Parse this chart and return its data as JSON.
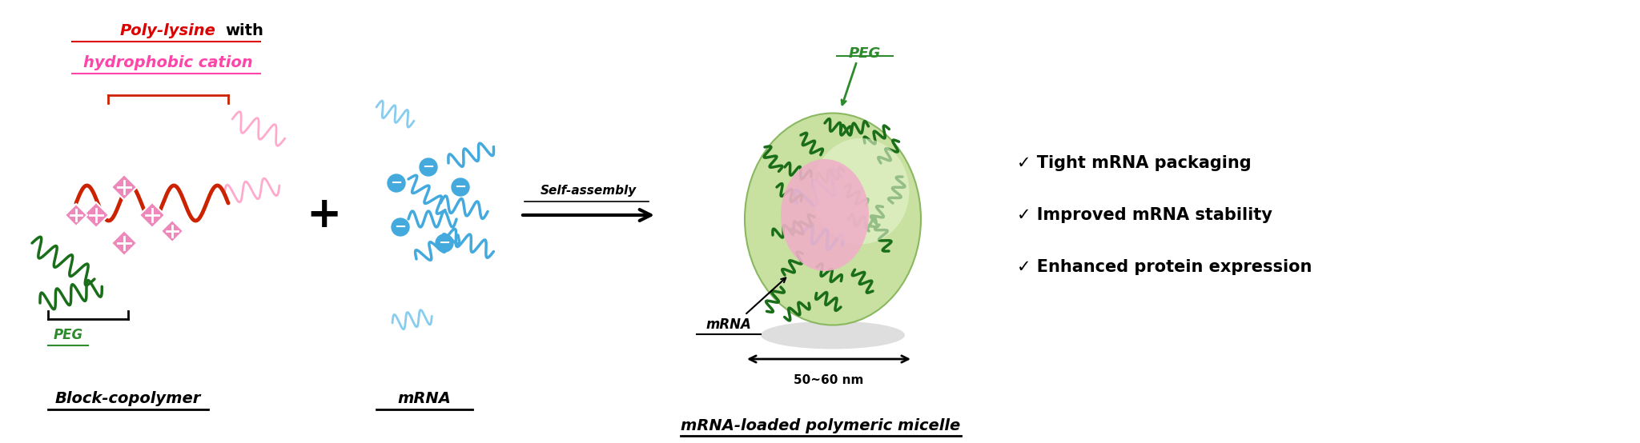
{
  "fig_width": 20.48,
  "fig_height": 5.54,
  "dpi": 100,
  "bg_color": "#ffffff",
  "title_red": "#dd0000",
  "title_pink": "#ff44aa",
  "dark_green": "#1a6e1a",
  "pink_color": "#ee88bb",
  "blue_color": "#44aadd",
  "light_blue": "#88ccee",
  "red_color": "#cc2200",
  "peg_green": "#2d8a2d",
  "micelle_green_outer": "#c8e0a0",
  "micelle_pink_core": "#f0b0c8",
  "shadow_color": "#d0d0d0",
  "block_copolymer_label": "Block-copolymer",
  "mrna_label": "mRNA",
  "micelle_label": "mRNA-loaded polymeric micelle",
  "peg_label": "PEG",
  "size_label": "50~60 nm",
  "mrna_pointer_label": "mRNA",
  "self_assembly_label": "Self-assembly",
  "bullet1": "✓ Tight mRNA packaging",
  "bullet2": "✓ Improved mRNA stability",
  "bullet3": "✓ Enhanced protein expression",
  "poly_lysine_text1": "Poly-lysine",
  "poly_lysine_text2": "with",
  "poly_lysine_text3": "hydrophobic cation"
}
